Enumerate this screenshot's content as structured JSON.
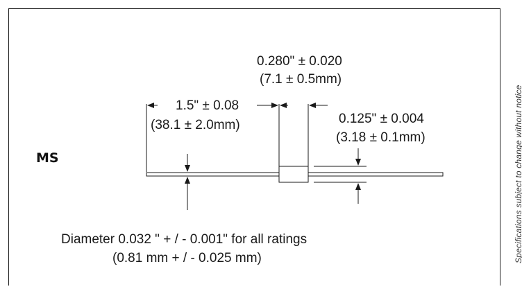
{
  "package_code": "MS",
  "dims": {
    "body_len_in": "0.280\" ± 0.020",
    "body_len_mm": "(7.1 ± 0.5mm)",
    "lead_len_in": "1.5\" ± 0.08",
    "lead_len_mm": "(38.1 ± 2.0mm)",
    "body_dia_in": "0.125\" ± 0.004",
    "body_dia_mm": "(3.18 ± 0.1mm)",
    "wire_dia_in": "Diameter 0.032 \" + / - 0.001\" for all ratings",
    "wire_dia_mm": "(0.81 mm + / - 0.025 mm)"
  },
  "side_note": "Specifications subject to change without notice",
  "colors": {
    "line": "#1a1a1a",
    "body_fill": "#ffffff",
    "background": "#ffffff"
  }
}
